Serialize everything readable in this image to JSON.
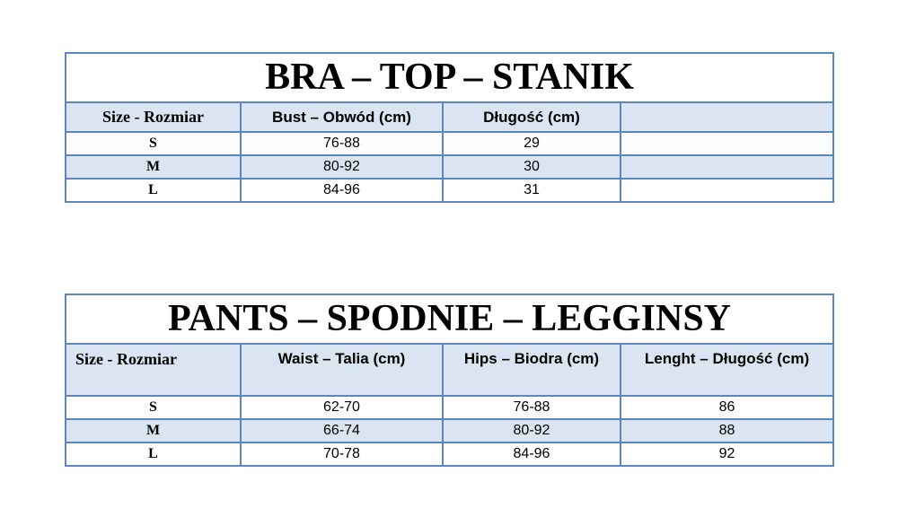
{
  "bra_table": {
    "title": "BRA – TOP – STANIK",
    "headers": [
      "Size - Rozmiar",
      "Bust – Obwód (cm)",
      "Długość (cm)",
      ""
    ],
    "rows": [
      {
        "size": "S",
        "bust": "76-88",
        "length": "29",
        "extra": ""
      },
      {
        "size": "M",
        "bust": "80-92",
        "length": "30",
        "extra": ""
      },
      {
        "size": "L",
        "bust": "84-96",
        "length": "31",
        "extra": ""
      }
    ]
  },
  "pants_table": {
    "title": "PANTS – SPODNIE – LEGGINSY",
    "headers": [
      "Size - Rozmiar",
      "Waist – Talia (cm)",
      "Hips – Biodra (cm)",
      "Lenght – Długość (cm)"
    ],
    "rows": [
      {
        "size": "S",
        "waist": "62-70",
        "hips": "76-88",
        "length": "86"
      },
      {
        "size": "M",
        "waist": "66-74",
        "hips": "80-92",
        "length": "88"
      },
      {
        "size": "L",
        "waist": "70-78",
        "hips": "84-96",
        "length": "92"
      }
    ]
  },
  "colors": {
    "border": "#5b86c2",
    "header_fill": "#dbe5f2",
    "alt_row_fill": "#dbe5f2"
  }
}
